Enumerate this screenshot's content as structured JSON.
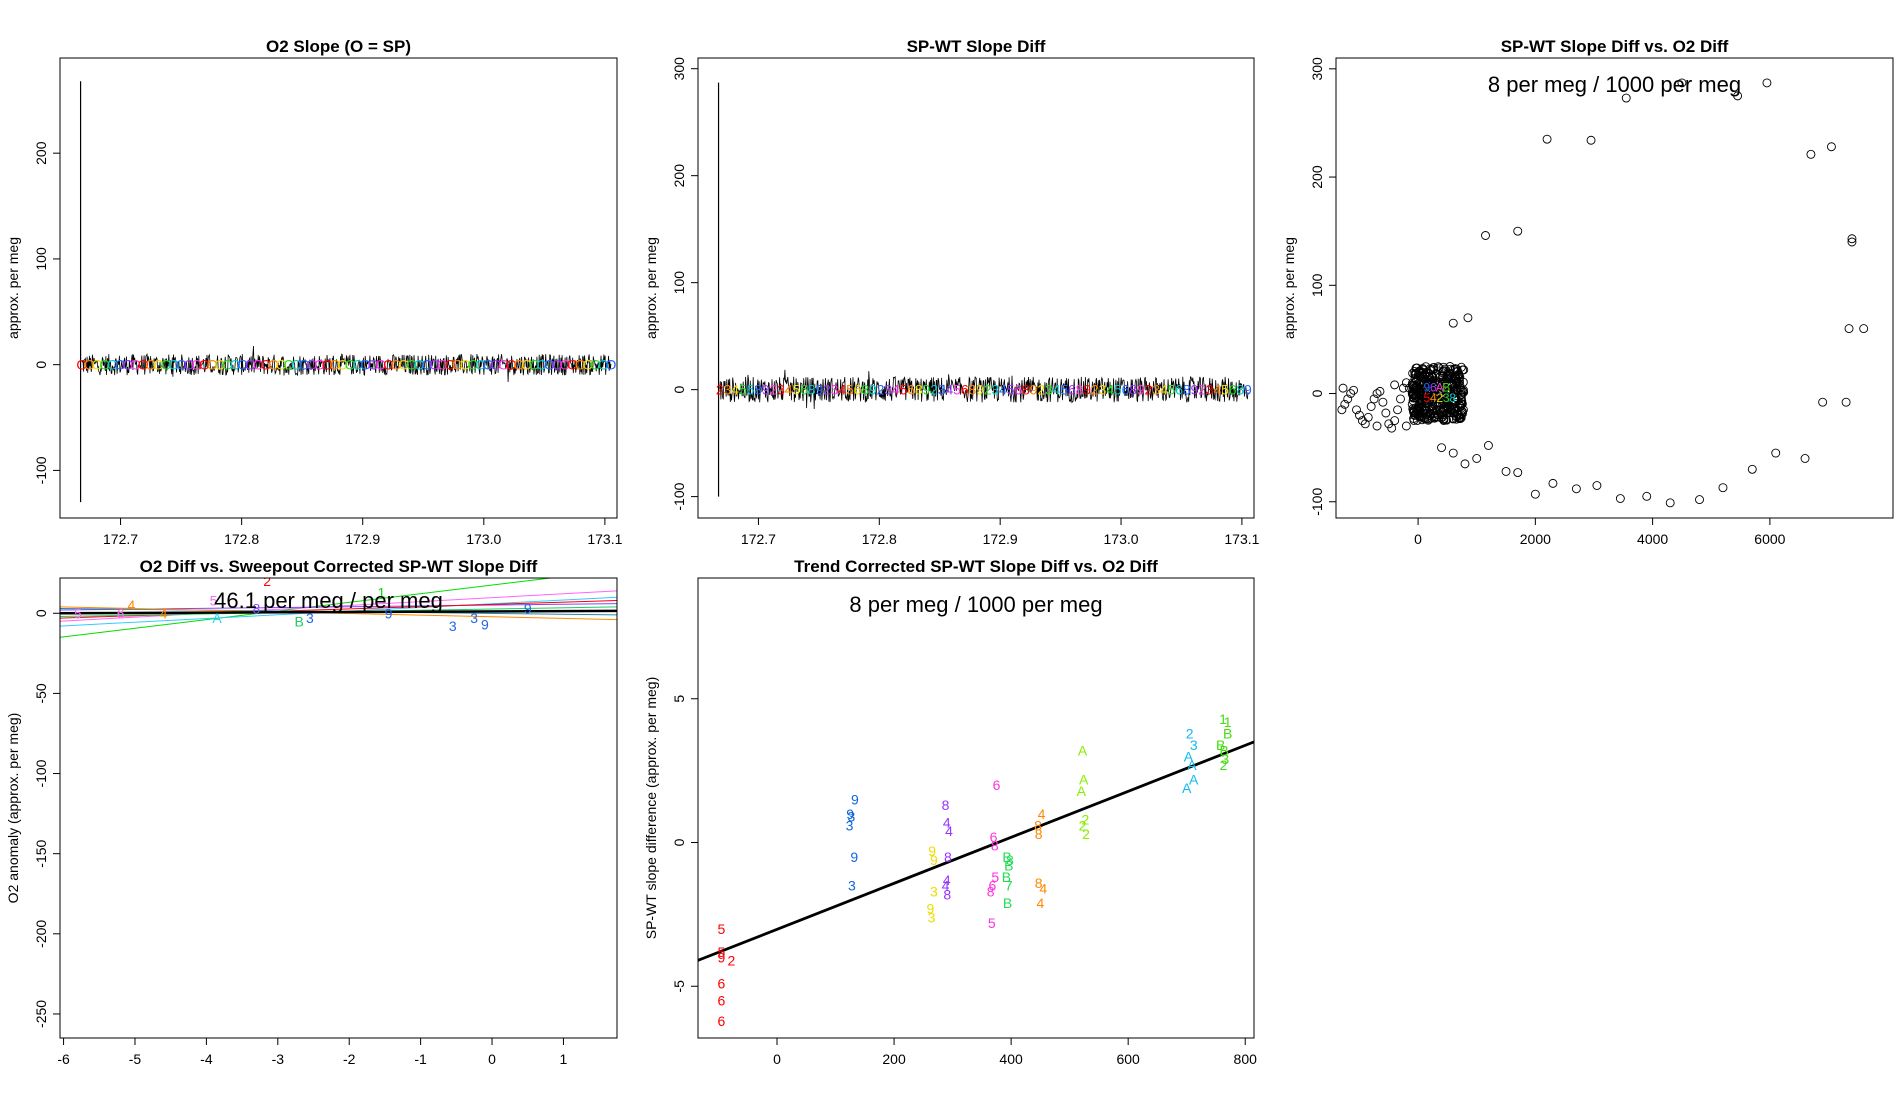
{
  "chart_data": [
    {
      "type": "line",
      "title": "O2 Slope (O = SP)",
      "xlabel": "",
      "ylabel": "approx. per meg",
      "xlim": [
        172.65,
        173.11
      ],
      "ylim": [
        -145,
        290
      ],
      "x_ticks": [
        "172.7",
        "172.8",
        "172.9",
        "173.0",
        "173.1"
      ],
      "y_ticks": [
        "-100",
        "0",
        "100",
        "200"
      ],
      "spike": {
        "x": 172.667,
        "ymin": -130,
        "ymax": 268
      },
      "noise_band": {
        "x": [
          172.668,
          173.105
        ],
        "center": 0,
        "amplitude": 10
      },
      "marker_char": "O"
    },
    {
      "type": "line",
      "title": "SP-WT Slope Diff",
      "xlabel": "",
      "ylabel": "approx. per meg",
      "xlim": [
        172.65,
        173.11
      ],
      "ylim": [
        -120,
        310
      ],
      "x_ticks": [
        "172.7",
        "172.8",
        "172.9",
        "173.0",
        "173.1"
      ],
      "y_ticks": [
        "-100",
        "0",
        "100",
        "200",
        "300"
      ],
      "spike": {
        "x": 172.667,
        "ymin": -100,
        "ymax": 287
      },
      "noise_band": {
        "x": [
          172.668,
          173.105
        ],
        "center": 0,
        "amplitude": 12
      },
      "marker_chars": [
        "2",
        "3",
        "4",
        "5",
        "6",
        "8",
        "9"
      ]
    },
    {
      "type": "scatter",
      "title": "SP-WT Slope Diff vs. O2 Diff",
      "annotation": "8 per meg / 1000 per meg",
      "xlabel": "",
      "ylabel": "approx. per meg",
      "xlim": [
        -1400,
        8100
      ],
      "ylim": [
        -115,
        310
      ],
      "x_ticks": [
        "0",
        "2000",
        "4000",
        "6000"
      ],
      "y_ticks": [
        "-100",
        "0",
        "100",
        "200",
        "300"
      ],
      "points": [
        [
          -1250,
          -10
        ],
        [
          -1200,
          -5
        ],
        [
          -1150,
          0
        ],
        [
          -1100,
          3
        ],
        [
          -1050,
          -15
        ],
        [
          -1000,
          -20
        ],
        [
          -950,
          -25
        ],
        [
          -900,
          -28
        ],
        [
          -850,
          -22
        ],
        [
          -800,
          -12
        ],
        [
          -750,
          -5
        ],
        [
          -700,
          0
        ],
        [
          -650,
          2
        ],
        [
          -600,
          -8
        ],
        [
          -550,
          -18
        ],
        [
          -500,
          -28
        ],
        [
          -450,
          -32
        ],
        [
          -400,
          -25
        ],
        [
          -350,
          -15
        ],
        [
          -300,
          -5
        ],
        [
          -250,
          5
        ],
        [
          -200,
          10
        ],
        [
          -150,
          5
        ],
        [
          -100,
          -10
        ],
        [
          -50,
          -20
        ],
        [
          -1300,
          -15
        ],
        [
          -1280,
          5
        ],
        [
          -700,
          -30
        ],
        [
          -400,
          8
        ],
        [
          -200,
          -30
        ],
        [
          400,
          -50
        ],
        [
          600,
          -55
        ],
        [
          800,
          -65
        ],
        [
          1000,
          -60
        ],
        [
          1200,
          -48
        ],
        [
          1500,
          -72
        ],
        [
          1700,
          -73
        ],
        [
          2000,
          -93
        ],
        [
          2300,
          -83
        ],
        [
          2700,
          -88
        ],
        [
          3050,
          -85
        ],
        [
          3450,
          -97
        ],
        [
          3900,
          -95
        ],
        [
          4300,
          -101
        ],
        [
          4800,
          -98
        ],
        [
          5200,
          -87
        ],
        [
          5700,
          -70
        ],
        [
          6100,
          -55
        ],
        [
          6600,
          -60
        ],
        [
          6900,
          -8
        ],
        [
          7300,
          -8
        ],
        [
          7350,
          60
        ],
        [
          7600,
          60
        ],
        [
          7400,
          140
        ],
        [
          7400,
          143
        ],
        [
          7050,
          228
        ],
        [
          6700,
          221
        ],
        [
          5950,
          287
        ],
        [
          5450,
          275
        ],
        [
          4500,
          287
        ],
        [
          3550,
          273
        ],
        [
          2950,
          234
        ],
        [
          2200,
          235
        ],
        [
          1700,
          150
        ],
        [
          1150,
          146
        ],
        [
          850,
          70
        ],
        [
          600,
          65
        ],
        [
          300,
          12
        ],
        [
          250,
          15
        ],
        [
          200,
          8
        ]
      ],
      "cluster": {
        "x": [
          -100,
          780
        ],
        "y": [
          -25,
          25
        ]
      },
      "colored_labels": [
        "5",
        "4",
        "2",
        "3",
        "8",
        "9",
        "6",
        "A",
        "B"
      ]
    },
    {
      "type": "line",
      "title": "O2 Diff vs. Sweepout Corrected SP-WT Slope Diff",
      "annotation": "46.1 per meg / per meg",
      "xlabel": "",
      "ylabel": "O2 anomaly (approx. per meg)",
      "xlim": [
        -6.05,
        1.75
      ],
      "ylim": [
        -265,
        22
      ],
      "x_ticks": [
        "-6",
        "-5",
        "-4",
        "-3",
        "-2",
        "-1",
        "0",
        "1"
      ],
      "y_ticks": [
        "-250",
        "-200",
        "-150",
        "-100",
        "-50",
        "0"
      ],
      "fit_line": {
        "x": [
          -6.05,
          1.75
        ],
        "y": [
          0,
          1.5
        ]
      },
      "series": [
        {
          "color": "#00dd00",
          "x": [
            -6.05,
            1.75
          ],
          "y": [
            -15,
            27
          ]
        },
        {
          "color": "#33ccff",
          "x": [
            -6.05,
            1.75
          ],
          "y": [
            -8,
            10
          ]
        },
        {
          "color": "#ff66ff",
          "x": [
            -6.05,
            1.75
          ],
          "y": [
            -5,
            14
          ]
        },
        {
          "color": "#8844ff",
          "x": [
            -6.05,
            1.75
          ],
          "y": [
            2,
            6
          ]
        },
        {
          "color": "#ff0000",
          "x": [
            -6.05,
            1.75
          ],
          "y": [
            -3,
            8
          ]
        },
        {
          "color": "#2288aa",
          "x": [
            -6.05,
            1.75
          ],
          "y": [
            3,
            -1
          ]
        },
        {
          "color": "#22cc66",
          "x": [
            -6.05,
            1.75
          ],
          "y": [
            -2,
            4
          ]
        },
        {
          "color": "#ff8800",
          "x": [
            -6.05,
            1.75
          ],
          "y": [
            4,
            -4
          ]
        }
      ],
      "labels": [
        {
          "t": "5",
          "x": -5.8,
          "y": 0,
          "c": "#ff66ff"
        },
        {
          "t": "6",
          "x": -5.2,
          "y": 0,
          "c": "#ff66ff"
        },
        {
          "t": "4",
          "x": -5.05,
          "y": 5,
          "c": "#ff8800"
        },
        {
          "t": "2",
          "x": -3.15,
          "y": 20,
          "c": "#ff0000"
        },
        {
          "t": "5",
          "x": -3.9,
          "y": 8,
          "c": "#ff66ff"
        },
        {
          "t": "A",
          "x": -3.85,
          "y": -3,
          "c": "#33ccff"
        },
        {
          "t": "8",
          "x": -3.3,
          "y": 3,
          "c": "#8844ff"
        },
        {
          "t": "B",
          "x": -2.7,
          "y": -5,
          "c": "#22cc66"
        },
        {
          "t": "3",
          "x": -2.55,
          "y": -3,
          "c": "#2266ee"
        },
        {
          "t": "9",
          "x": -1.45,
          "y": 0,
          "c": "#2266ee"
        },
        {
          "t": "3",
          "x": -0.55,
          "y": -8,
          "c": "#2266ee"
        },
        {
          "t": "3",
          "x": -0.25,
          "y": -3,
          "c": "#2266ee"
        },
        {
          "t": "9",
          "x": -0.1,
          "y": -7,
          "c": "#2266ee"
        },
        {
          "t": "9",
          "x": 0.5,
          "y": 3,
          "c": "#2266ee"
        },
        {
          "t": "1",
          "x": -1.55,
          "y": 13,
          "c": "#00dd00"
        },
        {
          "t": "4",
          "x": -4.6,
          "y": 0,
          "c": "#ff8800"
        }
      ]
    },
    {
      "type": "scatter",
      "title": "Trend Corrected SP-WT Slope Diff vs. O2 Diff",
      "annotation": "8 per meg / 1000 per meg",
      "xlabel": "",
      "ylabel": "SP-WT slope difference (approx. per meg)",
      "xlim": [
        -135,
        815
      ],
      "ylim": [
        -6.8,
        9.2
      ],
      "x_ticks": [
        "0",
        "200",
        "400",
        "600",
        "800"
      ],
      "y_ticks": [
        "-5",
        "0",
        "5"
      ],
      "fit_line": {
        "x": [
          -135,
          815
        ],
        "y": [
          -4.1,
          3.5
        ]
      },
      "labels": [
        {
          "t": "5",
          "x": -95,
          "y": -3.0,
          "c": "#ff0000"
        },
        {
          "t": "5",
          "x": -95,
          "y": -3.8,
          "c": "#ff0000"
        },
        {
          "t": "9",
          "x": -95,
          "y": -4.0,
          "c": "#ff0000"
        },
        {
          "t": "2",
          "x": -78,
          "y": -4.1,
          "c": "#ff0000"
        },
        {
          "t": "6",
          "x": -95,
          "y": -4.9,
          "c": "#ff0000"
        },
        {
          "t": "6",
          "x": -95,
          "y": -5.5,
          "c": "#ff0000"
        },
        {
          "t": "6",
          "x": -95,
          "y": -6.2,
          "c": "#ff0000"
        },
        {
          "t": "9",
          "x": 133,
          "y": 1.5,
          "c": "#1166dd"
        },
        {
          "t": "9",
          "x": 125,
          "y": 1.0,
          "c": "#1166dd"
        },
        {
          "t": "3",
          "x": 127,
          "y": 0.9,
          "c": "#1166dd"
        },
        {
          "t": "3",
          "x": 124,
          "y": 0.6,
          "c": "#1166dd"
        },
        {
          "t": "9",
          "x": 132,
          "y": -0.5,
          "c": "#1166dd"
        },
        {
          "t": "3",
          "x": 128,
          "y": -1.5,
          "c": "#1166dd"
        },
        {
          "t": "9",
          "x": 265,
          "y": -0.3,
          "c": "#eedd00"
        },
        {
          "t": "9",
          "x": 268,
          "y": -0.6,
          "c": "#eedd00"
        },
        {
          "t": "3",
          "x": 268,
          "y": -1.7,
          "c": "#eedd00"
        },
        {
          "t": "9",
          "x": 262,
          "y": -2.3,
          "c": "#eedd00"
        },
        {
          "t": "3",
          "x": 264,
          "y": -2.6,
          "c": "#eedd00"
        },
        {
          "t": "8",
          "x": 288,
          "y": 1.3,
          "c": "#9933ff"
        },
        {
          "t": "4",
          "x": 290,
          "y": 0.7,
          "c": "#9933ff"
        },
        {
          "t": "4",
          "x": 294,
          "y": 0.4,
          "c": "#9933ff"
        },
        {
          "t": "8",
          "x": 292,
          "y": -0.5,
          "c": "#9933ff"
        },
        {
          "t": "4",
          "x": 290,
          "y": -1.3,
          "c": "#9933ff"
        },
        {
          "t": "4",
          "x": 288,
          "y": -1.5,
          "c": "#9933ff"
        },
        {
          "t": "8",
          "x": 291,
          "y": -1.8,
          "c": "#9933ff"
        },
        {
          "t": "6",
          "x": 375,
          "y": 2.0,
          "c": "#ff33dd"
        },
        {
          "t": "6",
          "x": 370,
          "y": 0.2,
          "c": "#ff33dd"
        },
        {
          "t": "8",
          "x": 372,
          "y": -0.1,
          "c": "#ff33dd"
        },
        {
          "t": "5",
          "x": 373,
          "y": -1.2,
          "c": "#ff33dd"
        },
        {
          "t": "6",
          "x": 368,
          "y": -1.5,
          "c": "#ff33dd"
        },
        {
          "t": "8",
          "x": 365,
          "y": -1.7,
          "c": "#ff33dd"
        },
        {
          "t": "5",
          "x": 367,
          "y": -2.8,
          "c": "#ff33dd"
        },
        {
          "t": "B",
          "x": 393,
          "y": -0.5,
          "c": "#22dd55"
        },
        {
          "t": "8",
          "x": 398,
          "y": -0.6,
          "c": "#22dd55"
        },
        {
          "t": "B",
          "x": 396,
          "y": -0.8,
          "c": "#22dd55"
        },
        {
          "t": "B",
          "x": 392,
          "y": -1.2,
          "c": "#22dd55"
        },
        {
          "t": "7",
          "x": 396,
          "y": -1.5,
          "c": "#22dd55"
        },
        {
          "t": "B",
          "x": 394,
          "y": -2.1,
          "c": "#22dd55"
        },
        {
          "t": "4",
          "x": 452,
          "y": 1.0,
          "c": "#ff8800"
        },
        {
          "t": "8",
          "x": 446,
          "y": 0.6,
          "c": "#ff8800"
        },
        {
          "t": "8",
          "x": 447,
          "y": 0.3,
          "c": "#ff8800"
        },
        {
          "t": "8",
          "x": 447,
          "y": -1.4,
          "c": "#ff8800"
        },
        {
          "t": "4",
          "x": 455,
          "y": -1.6,
          "c": "#ff8800"
        },
        {
          "t": "4",
          "x": 450,
          "y": -2.1,
          "c": "#ff8800"
        },
        {
          "t": "A",
          "x": 522,
          "y": 3.2,
          "c": "#88ee00"
        },
        {
          "t": "A",
          "x": 524,
          "y": 2.2,
          "c": "#88ee00"
        },
        {
          "t": "A",
          "x": 520,
          "y": 1.8,
          "c": "#88ee00"
        },
        {
          "t": "2",
          "x": 527,
          "y": 0.8,
          "c": "#88ee00"
        },
        {
          "t": "2",
          "x": 522,
          "y": 0.6,
          "c": "#88ee00"
        },
        {
          "t": "2",
          "x": 528,
          "y": 0.3,
          "c": "#88ee00"
        },
        {
          "t": "2",
          "x": 705,
          "y": 3.8,
          "c": "#11bbee"
        },
        {
          "t": "3",
          "x": 712,
          "y": 3.4,
          "c": "#11bbee"
        },
        {
          "t": "A",
          "x": 703,
          "y": 3.0,
          "c": "#11bbee"
        },
        {
          "t": "A",
          "x": 709,
          "y": 2.7,
          "c": "#11bbee"
        },
        {
          "t": "A",
          "x": 712,
          "y": 2.2,
          "c": "#11bbee"
        },
        {
          "t": "A",
          "x": 700,
          "y": 1.9,
          "c": "#11bbee"
        },
        {
          "t": "1",
          "x": 762,
          "y": 4.3,
          "c": "#44dd11"
        },
        {
          "t": "1",
          "x": 770,
          "y": 4.2,
          "c": "#44dd11"
        },
        {
          "t": "B",
          "x": 770,
          "y": 3.8,
          "c": "#44dd11"
        },
        {
          "t": "B",
          "x": 758,
          "y": 3.4,
          "c": "#44dd11"
        },
        {
          "t": "B",
          "x": 764,
          "y": 3.2,
          "c": "#44dd11"
        },
        {
          "t": "3",
          "x": 766,
          "y": 2.9,
          "c": "#44dd11"
        },
        {
          "t": "2",
          "x": 763,
          "y": 2.7,
          "c": "#44dd11"
        }
      ]
    }
  ]
}
